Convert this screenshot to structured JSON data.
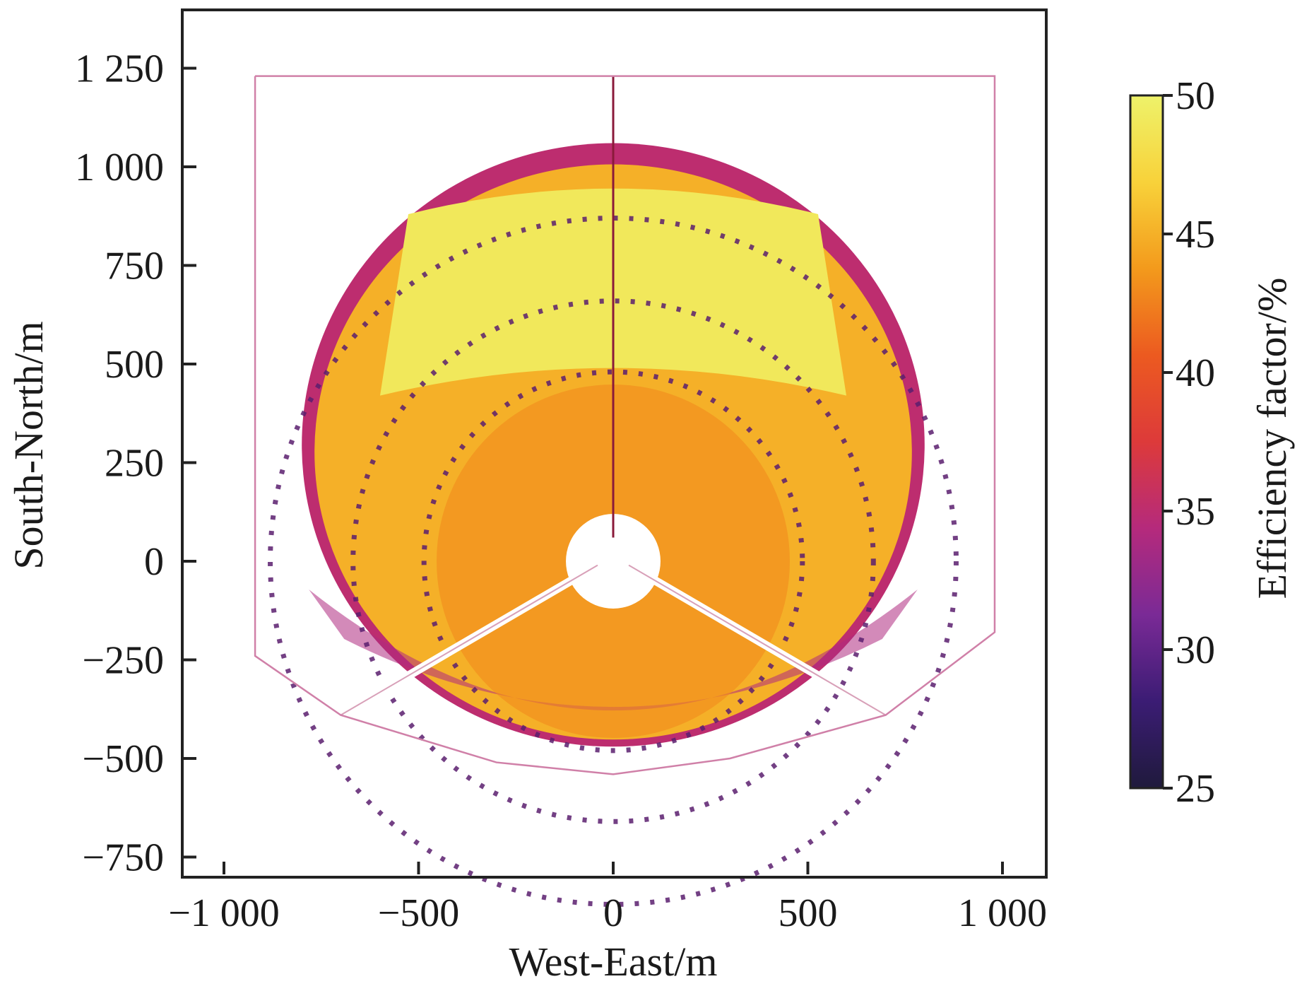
{
  "chart_data": {
    "type": "heatmap",
    "xlabel": "West-East/m",
    "ylabel": "South-North/m",
    "xlim": [
      -1100,
      1100
    ],
    "ylim": [
      -800,
      1350
    ],
    "xticks": [
      {
        "value": -1000,
        "label": "−1 000"
      },
      {
        "value": -500,
        "label": "−500"
      },
      {
        "value": 0,
        "label": "0"
      },
      {
        "value": 500,
        "label": "500"
      },
      {
        "value": 1000,
        "label": "1 000"
      }
    ],
    "yticks": [
      {
        "value": 1250,
        "label": "1 250"
      },
      {
        "value": 1000,
        "label": "1 000"
      },
      {
        "value": 750,
        "label": "750"
      },
      {
        "value": 500,
        "label": "500"
      },
      {
        "value": 250,
        "label": "250"
      },
      {
        "value": 0,
        "label": "0"
      },
      {
        "value": -250,
        "label": "−250"
      },
      {
        "value": -500,
        "label": "−500"
      },
      {
        "value": -750,
        "label": "−750"
      }
    ],
    "colorbar": {
      "label": "Efficiency factor/%",
      "min": 25,
      "max": 50,
      "ticks": [
        {
          "value": 50,
          "label": "50"
        },
        {
          "value": 45,
          "label": "45"
        },
        {
          "value": 40,
          "label": "40"
        },
        {
          "value": 35,
          "label": "35"
        },
        {
          "value": 30,
          "label": "30"
        },
        {
          "value": 25,
          "label": "25"
        }
      ],
      "colormap": [
        "#1f1a3c",
        "#3b1c74",
        "#7a2a96",
        "#b52a7c",
        "#dd3a3a",
        "#ec5a20",
        "#f39a1c",
        "#f8d23a",
        "#eef26a"
      ]
    },
    "field": {
      "center": [
        0,
        0
      ],
      "inner_radius": 120,
      "outer_edge_north": 1060,
      "outer_edge_south": -470,
      "outer_edge_east": 800,
      "outer_edge_west": -800,
      "tower_line": {
        "x": 0,
        "y_from": 60,
        "y_to": 1230
      },
      "access_roads": [
        {
          "from": [
            -40,
            -10
          ],
          "to": [
            -700,
            -390
          ]
        },
        {
          "from": [
            40,
            -10
          ],
          "to": [
            700,
            -390
          ]
        }
      ],
      "gap_rings_radius": [
        480,
        660,
        870
      ],
      "efficiency_regions": [
        {
          "name": "north-high",
          "value": 49
        },
        {
          "name": "middle",
          "value": 45
        },
        {
          "name": "near-tower",
          "value": 43
        },
        {
          "name": "south-edge",
          "value": 34
        },
        {
          "name": "outer-rim",
          "value": 35
        }
      ]
    },
    "boundary": [
      [
        -920,
        1230
      ],
      [
        980,
        1230
      ],
      [
        980,
        -180
      ],
      [
        700,
        -390
      ],
      [
        300,
        -500
      ],
      [
        0,
        -540
      ],
      [
        -300,
        -510
      ],
      [
        -700,
        -390
      ],
      [
        -920,
        -240
      ],
      [
        -920,
        1230
      ]
    ],
    "grid": false,
    "legend": "colorbar-right"
  }
}
